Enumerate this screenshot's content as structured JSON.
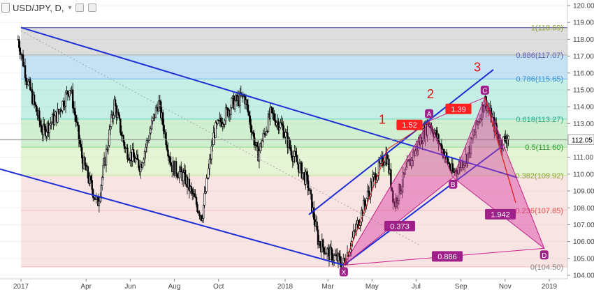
{
  "header": {
    "symbol": "USD/JPY, D,",
    "dropdown_icon": "chevron-down-icon",
    "settings_icon": "settings-icon",
    "eye_icon": "eye-icon"
  },
  "chart_data": {
    "type": "candlestick",
    "symbol": "USD/JPY",
    "interval": "D",
    "ylim": [
      103.75,
      120.25
    ],
    "y_ticks": [
      "120.00",
      "119.00",
      "118.00",
      "117.00",
      "116.00",
      "115.00",
      "114.00",
      "113.00",
      "112.00",
      "111.00",
      "110.00",
      "109.00",
      "108.00",
      "107.00",
      "106.00",
      "105.00",
      "104.00"
    ],
    "x_ticks": [
      "2017",
      "Apr",
      "Jun",
      "Aug",
      "Oct",
      "2018",
      "Mar",
      "May",
      "Jul",
      "Sep",
      "Nov",
      "2019"
    ],
    "last_price": "112.05",
    "fib_levels": [
      {
        "ratio": "1",
        "value": 118.69,
        "label": "1(118.69)",
        "color": "#5a5ab4"
      },
      {
        "ratio": "0.886",
        "value": 117.07,
        "label": "0.886(117.07)",
        "color": "#b4b4b4"
      },
      {
        "ratio": "0.786",
        "value": 115.65,
        "label": "0.786(115.65)",
        "color": "#7fbfe8"
      },
      {
        "ratio": "0.618",
        "value": 113.27,
        "label": "0.618(113.27)",
        "color": "#7fdcc4"
      },
      {
        "ratio": "0.5",
        "value": 111.6,
        "label": "0.5(111.60)",
        "color": "#96dc96"
      },
      {
        "ratio": "0.382",
        "value": 109.92,
        "label": "0.382(109.92)",
        "color": "#c6e6a0"
      },
      {
        "ratio": "0.236",
        "value": 107.85,
        "label": "0.236(107.85)",
        "color": "#f2c4c4"
      },
      {
        "ratio": "0",
        "value": 104.5,
        "label": "0(104.50)",
        "color": "#f2c4c4"
      }
    ],
    "pattern_points": [
      {
        "label": "X",
        "date": "2018-03-23",
        "price": 104.6
      },
      {
        "label": "A",
        "date": "2018-07-19",
        "price": 113.15
      },
      {
        "label": "B",
        "date": "2018-08-21",
        "price": 109.8
      },
      {
        "label": "C",
        "date": "2018-10-04",
        "price": 114.55
      },
      {
        "label": "D",
        "date": "2018-12-25",
        "price": 105.6
      }
    ],
    "ratios": [
      {
        "text": "1.52"
      },
      {
        "text": "1.39"
      },
      {
        "text": "0.373"
      },
      {
        "text": "1.942"
      },
      {
        "text": "0.886"
      }
    ],
    "wave_labels": [
      "1",
      "2",
      "3"
    ]
  }
}
